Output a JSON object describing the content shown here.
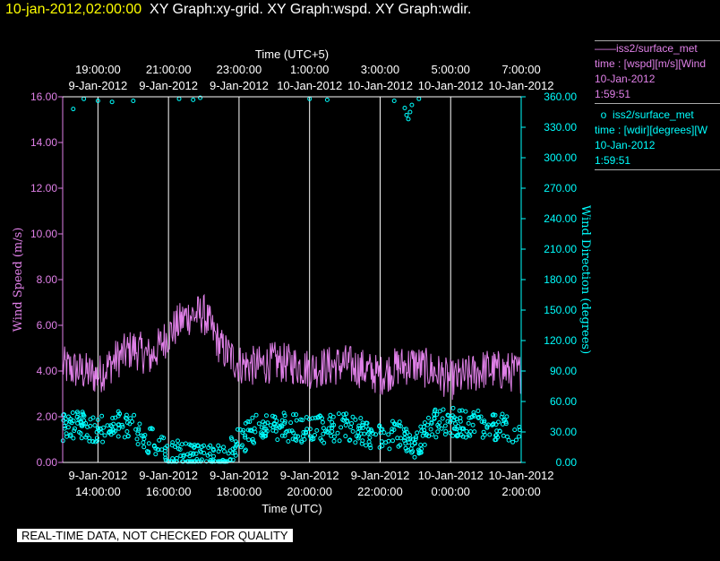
{
  "header": {
    "timestamp": "10-jan-2012,02:00:00",
    "graphs": "XY Graph:xy-grid.  XY Graph:wspd.  XY Graph:wdir."
  },
  "legend": {
    "wspd": {
      "marker": "——",
      "name": "iss2/surface_met",
      "line2": "time : [wspd][m/s][Wind",
      "date": "10-Jan-2012",
      "time": "1:59:51"
    },
    "wdir": {
      "marker": "o",
      "name": "iss2/surface_met",
      "line2": "time : [wdir][degrees][W",
      "date": "10-Jan-2012",
      "time": "1:59:51"
    }
  },
  "footer_note": "REAL-TIME DATA, NOT CHECKED FOR QUALITY",
  "colors": {
    "wspd": "#e080e8",
    "wdir": "#00ffff",
    "grid": "#ffffff",
    "background": "#000000"
  },
  "chart_data": {
    "type": "line",
    "title": "",
    "x_bottom": {
      "label": "Time (UTC)",
      "range": [
        "2012-01-09 13:00",
        "2012-01-10 02:00"
      ],
      "ticks": [
        {
          "date": "9-Jan-2012",
          "time": "14:00:00",
          "hour": 1
        },
        {
          "date": "9-Jan-2012",
          "time": "16:00:00",
          "hour": 3
        },
        {
          "date": "9-Jan-2012",
          "time": "18:00:00",
          "hour": 5
        },
        {
          "date": "9-Jan-2012",
          "time": "20:00:00",
          "hour": 7
        },
        {
          "date": "9-Jan-2012",
          "time": "22:00:00",
          "hour": 9
        },
        {
          "date": "10-Jan-2012",
          "time": "0:00:00",
          "hour": 11
        },
        {
          "date": "10-Jan-2012",
          "time": "2:00:00",
          "hour": 13
        }
      ]
    },
    "x_top": {
      "label": "Time (UTC+5)",
      "ticks": [
        {
          "time": "19:00:00",
          "date": "9-Jan-2012",
          "hour": 1
        },
        {
          "time": "21:00:00",
          "date": "9-Jan-2012",
          "hour": 3
        },
        {
          "time": "23:00:00",
          "date": "9-Jan-2012",
          "hour": 5
        },
        {
          "time": "1:00:00",
          "date": "10-Jan-2012",
          "hour": 7
        },
        {
          "time": "3:00:00",
          "date": "10-Jan-2012",
          "hour": 9
        },
        {
          "time": "5:00:00",
          "date": "10-Jan-2012",
          "hour": 11
        },
        {
          "time": "7:00:00",
          "date": "10-Jan-2012",
          "hour": 13
        }
      ]
    },
    "y_left": {
      "label": "Wind Speed (m/s)",
      "ylim": [
        0,
        16
      ],
      "ticks": [
        "0.00",
        "2.00",
        "4.00",
        "6.00",
        "8.00",
        "10.00",
        "12.00",
        "14.00",
        "16.00"
      ]
    },
    "y_right": {
      "label": "Wind Direction (degrees)",
      "ylim": [
        0,
        360
      ],
      "ticks": [
        "0.00",
        "30.00",
        "60.00",
        "90.00",
        "120.00",
        "150.00",
        "180.00",
        "210.00",
        "240.00",
        "270.00",
        "300.00",
        "330.00",
        "360.00"
      ]
    },
    "grid": "vertical",
    "series": [
      {
        "name": "iss2/surface_met",
        "axis": "left",
        "style": "line",
        "x_hours": [
          0.0,
          0.5,
          1.0,
          1.5,
          2.0,
          2.5,
          3.0,
          3.5,
          4.0,
          4.5,
          5.0,
          5.5,
          6.0,
          6.5,
          7.0,
          7.5,
          8.0,
          8.5,
          9.0,
          9.5,
          10.0,
          10.5,
          11.0,
          11.5,
          12.0,
          12.5,
          13.0
        ],
        "values": [
          4.2,
          4.0,
          3.8,
          4.5,
          5.0,
          4.6,
          5.6,
          6.4,
          6.5,
          5.0,
          4.3,
          4.2,
          4.4,
          4.3,
          4.1,
          4.2,
          4.3,
          4.1,
          3.8,
          4.2,
          4.3,
          4.0,
          3.6,
          3.8,
          4.1,
          4.0,
          3.9
        ],
        "noise": 0.9
      },
      {
        "name": "iss2/surface_met",
        "axis": "right",
        "style": "scatter",
        "x_hours": [
          0.0,
          0.5,
          1.0,
          1.5,
          2.0,
          2.5,
          3.0,
          3.5,
          4.0,
          4.5,
          5.0,
          5.5,
          6.0,
          6.5,
          7.0,
          7.5,
          8.0,
          8.5,
          9.0,
          9.5,
          10.0,
          10.5,
          11.0,
          11.5,
          12.0,
          12.5,
          13.0
        ],
        "values": [
          35,
          38,
          30,
          40,
          35,
          20,
          10,
          5,
          3,
          4,
          20,
          35,
          36,
          34,
          32,
          33,
          36,
          30,
          25,
          28,
          15,
          38,
          40,
          38,
          36,
          35,
          20
        ],
        "noise": 14,
        "outliers": [
          {
            "x": 0.3,
            "y": 348
          },
          {
            "x": 0.6,
            "y": 358
          },
          {
            "x": 1.0,
            "y": 356
          },
          {
            "x": 1.4,
            "y": 355
          },
          {
            "x": 2.0,
            "y": 356
          },
          {
            "x": 3.3,
            "y": 358
          },
          {
            "x": 3.7,
            "y": 357
          },
          {
            "x": 3.9,
            "y": 359
          },
          {
            "x": 7.0,
            "y": 358
          },
          {
            "x": 7.5,
            "y": 357
          },
          {
            "x": 9.4,
            "y": 356
          },
          {
            "x": 9.7,
            "y": 349
          },
          {
            "x": 9.75,
            "y": 342
          },
          {
            "x": 9.8,
            "y": 338
          },
          {
            "x": 9.85,
            "y": 345
          },
          {
            "x": 9.9,
            "y": 352
          },
          {
            "x": 10.1,
            "y": 358
          }
        ]
      }
    ]
  }
}
